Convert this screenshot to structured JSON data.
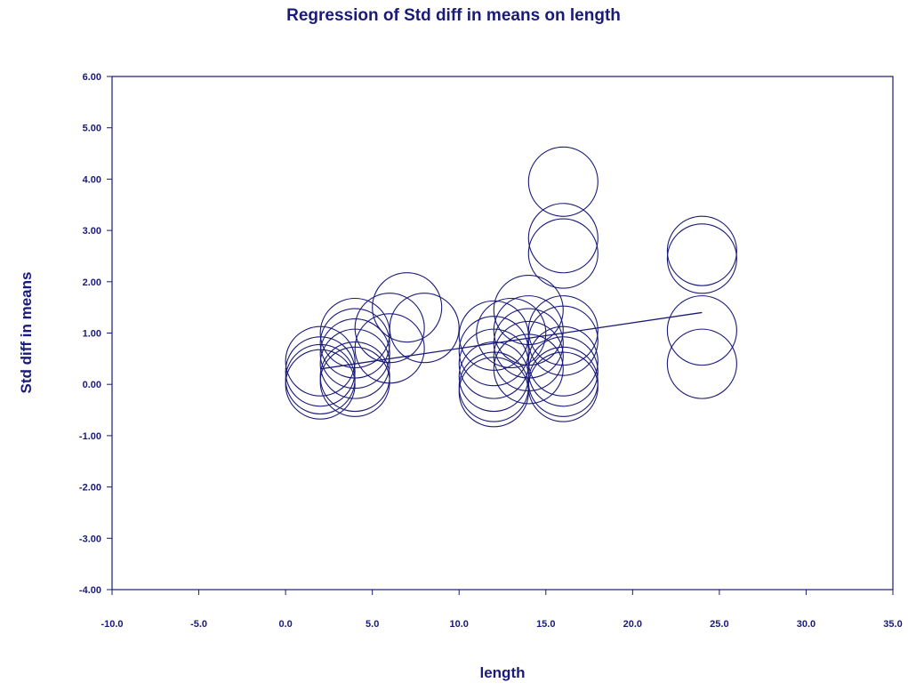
{
  "chart_data": {
    "type": "scatter",
    "title": "Regression of Std diff in means on length",
    "xlabel": "length",
    "ylabel": "Std diff in means",
    "xlim": [
      -10,
      35
    ],
    "ylim": [
      -4,
      6
    ],
    "x_ticks": [
      "-10.0",
      "-5.0",
      "0.0",
      "5.0",
      "10.0",
      "15.0",
      "20.0",
      "25.0",
      "30.0",
      "35.0"
    ],
    "y_ticks": [
      "6.00",
      "5.00",
      "4.00",
      "3.00",
      "2.00",
      "1.00",
      "0.00",
      "-1.00",
      "-2.00",
      "-3.00",
      "-4.00"
    ],
    "grid": false,
    "legend": "none",
    "color": "#1a1a78",
    "marker": "circle (size proportional to study weight)",
    "points": [
      {
        "x": 2,
        "y": 0.45
      },
      {
        "x": 2,
        "y": 0.25
      },
      {
        "x": 2,
        "y": 0.1
      },
      {
        "x": 2,
        "y": 0.0
      },
      {
        "x": 4,
        "y": 1.0
      },
      {
        "x": 4,
        "y": 0.8
      },
      {
        "x": 4,
        "y": 0.6
      },
      {
        "x": 4,
        "y": 0.4
      },
      {
        "x": 4,
        "y": 0.15
      },
      {
        "x": 4,
        "y": 0.05
      },
      {
        "x": 6,
        "y": 1.1
      },
      {
        "x": 6,
        "y": 0.7
      },
      {
        "x": 7,
        "y": 1.5
      },
      {
        "x": 8,
        "y": 1.1
      },
      {
        "x": 12,
        "y": 0.95
      },
      {
        "x": 12,
        "y": 0.65
      },
      {
        "x": 12,
        "y": 0.4
      },
      {
        "x": 12,
        "y": 0.15
      },
      {
        "x": 12,
        "y": -0.05
      },
      {
        "x": 12,
        "y": -0.15
      },
      {
        "x": 13,
        "y": 1.0
      },
      {
        "x": 14,
        "y": 1.45
      },
      {
        "x": 14,
        "y": 1.05
      },
      {
        "x": 14,
        "y": 0.8
      },
      {
        "x": 14,
        "y": 0.55
      },
      {
        "x": 14,
        "y": 0.3
      },
      {
        "x": 16,
        "y": 3.95
      },
      {
        "x": 16,
        "y": 2.85
      },
      {
        "x": 16,
        "y": 2.55
      },
      {
        "x": 16,
        "y": 1.05
      },
      {
        "x": 16,
        "y": 0.85
      },
      {
        "x": 16,
        "y": 0.45
      },
      {
        "x": 16,
        "y": 0.25
      },
      {
        "x": 16,
        "y": 0.05
      },
      {
        "x": 16,
        "y": -0.05
      },
      {
        "x": 24,
        "y": 2.6
      },
      {
        "x": 24,
        "y": 2.45
      },
      {
        "x": 24,
        "y": 1.05
      },
      {
        "x": 24,
        "y": 0.4
      }
    ],
    "regression_line": {
      "x": [
        2,
        24
      ],
      "y": [
        0.3,
        1.4
      ]
    }
  }
}
